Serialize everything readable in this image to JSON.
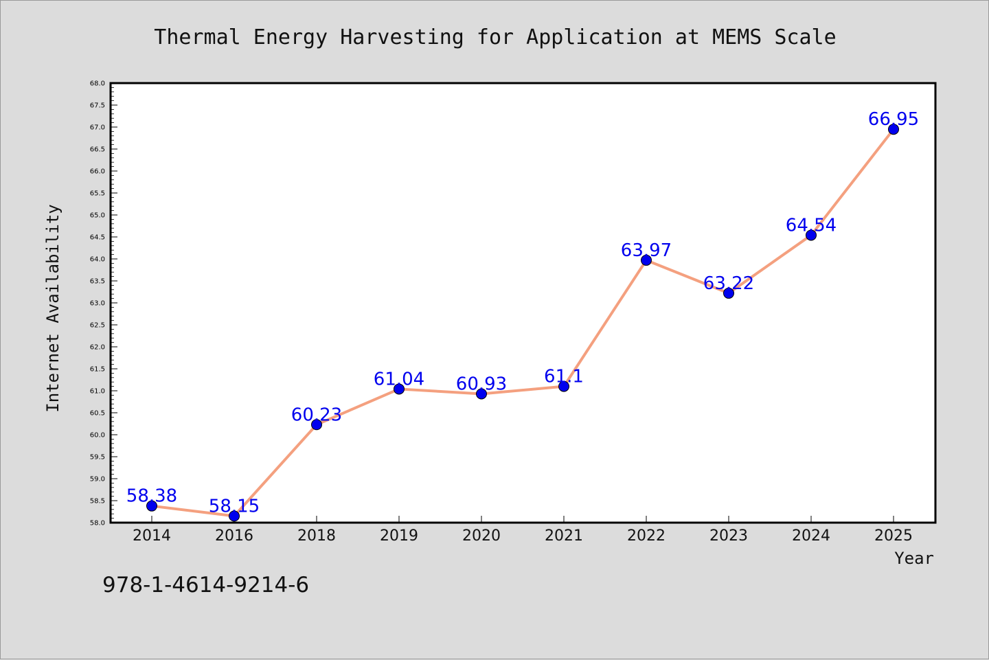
{
  "isbn": "978-1-4614-9214-6",
  "chart_data": {
    "type": "line",
    "title": "Thermal Energy Harvesting for Application at MEMS Scale",
    "xlabel": "Year",
    "ylabel": "Internet Availability",
    "categories": [
      "2014",
      "2016",
      "2018",
      "2019",
      "2020",
      "2021",
      "2022",
      "2023",
      "2024",
      "2025"
    ],
    "series": [
      {
        "values": [
          58.38,
          58.15,
          60.23,
          61.04,
          60.93,
          61.1,
          63.97,
          63.22,
          64.54,
          66.95
        ],
        "labels": [
          "58.38",
          "58.15",
          "60.23",
          "61.04",
          "60.93",
          "61.1",
          "63.97",
          "63.22",
          "64.54",
          "66.95"
        ],
        "line_color": "#f4a07f",
        "marker_color": "#0000ee",
        "label_color": "#0000ee"
      }
    ],
    "ylim": [
      58.0,
      68.0
    ],
    "yticks": [
      "58.0",
      "58.5",
      "59.0",
      "59.5",
      "60.0",
      "60.5",
      "61.0",
      "61.5",
      "62.0",
      "62.5",
      "63.0",
      "63.5",
      "64.0",
      "64.5",
      "65.0",
      "65.5",
      "66.0",
      "66.5",
      "67.0",
      "67.5",
      "68.0"
    ],
    "grid": false,
    "plot_background": "#ffffff",
    "figure_background": "#dcdcdc"
  }
}
